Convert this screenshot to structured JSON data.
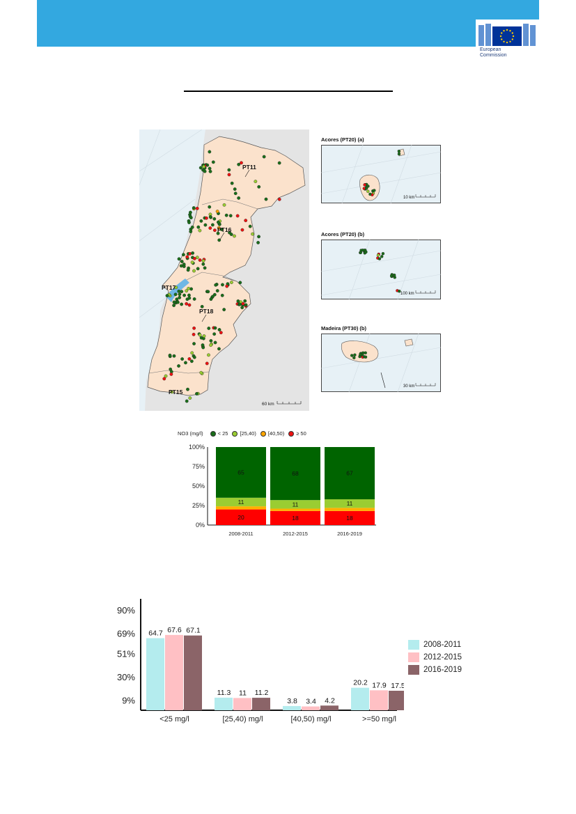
{
  "header": {
    "logo_line1": "European",
    "logo_line2": "Commission",
    "colors": {
      "banner": "#33a8e0",
      "eu_blue": "#003399",
      "eu_star": "#ffcc00"
    }
  },
  "map": {
    "labels": {
      "pt11": "PT11",
      "pt16": "PT16",
      "pt17": "PT17",
      "pt18": "PT18",
      "pt15": "PT15"
    },
    "scale": "60 km"
  },
  "insets": [
    {
      "caption": "Acores (PT20) (a)",
      "scale": "10 km"
    },
    {
      "caption": "Acores (PT20) (b)",
      "scale": "100 km"
    },
    {
      "caption": "Madeira (PT30) (b)",
      "scale": "30 km"
    }
  ],
  "legend": {
    "title": "NO3 (mg/l)",
    "items": [
      {
        "label": "< 25",
        "color": "#1a6e1a"
      },
      {
        "label": "[25,40)",
        "color": "#9acd32"
      },
      {
        "label": "[40,50)",
        "color": "#ffa500"
      },
      {
        "label": "≥ 50",
        "color": "#ee1111"
      }
    ]
  },
  "chart_data": [
    {
      "type": "bar",
      "stacked": true,
      "categories": [
        "2008-2011",
        "2012-2015",
        "2016-2019"
      ],
      "series": [
        {
          "name": "≥ 50",
          "color": "#ff0000",
          "values": [
            20,
            18,
            18
          ],
          "labels": [
            "20",
            "18",
            "18"
          ]
        },
        {
          "name": "[40,50)",
          "color": "#ffb000",
          "values": [
            4,
            3,
            4
          ],
          "labels": [
            "",
            "",
            ""
          ]
        },
        {
          "name": "[25,40)",
          "color": "#9acd32",
          "values": [
            11,
            11,
            11
          ],
          "labels": [
            "11",
            "11",
            "11"
          ]
        },
        {
          "name": "< 25",
          "color": "#006400",
          "values": [
            65,
            68,
            67
          ],
          "labels": [
            "65",
            "68",
            "67"
          ]
        }
      ],
      "yticks": [
        "0%",
        "25%",
        "50%",
        "75%",
        "100%"
      ],
      "ylim": [
        0,
        100
      ]
    },
    {
      "type": "bar",
      "categories": [
        "<25 mg/l",
        "[25,40) mg/l",
        "[40,50) mg/l",
        ">=50 mg/l"
      ],
      "series": [
        {
          "name": "2008-2011",
          "color": "#b4ecee",
          "values": [
            64.7,
            11.3,
            3.8,
            20.2
          ]
        },
        {
          "name": "2012-2015",
          "color": "#ffc0c4",
          "values": [
            67.6,
            11,
            3.4,
            17.9
          ]
        },
        {
          "name": "2016-2019",
          "color": "#8b6468",
          "values": [
            67.1,
            11.2,
            4.2,
            17.5
          ]
        }
      ],
      "yticks": [
        {
          "label": "9%",
          "value": 9
        },
        {
          "label": "30%",
          "value": 30
        },
        {
          "label": "51%",
          "value": 51
        },
        {
          "label": "69%",
          "value": 69
        },
        {
          "label": "90%",
          "value": 90
        }
      ],
      "ylim": [
        0,
        100
      ]
    }
  ]
}
